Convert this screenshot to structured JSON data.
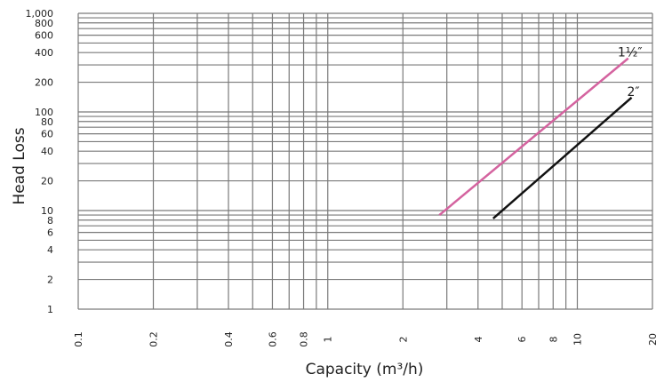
{
  "chart_data": {
    "type": "line",
    "x_scale": "log",
    "y_scale": "log",
    "xlabel": "Capacity (m³/h)",
    "ylabel": "Head Loss",
    "xlim": [
      0.1,
      20
    ],
    "ylim": [
      1,
      1000
    ],
    "grid": true,
    "x_ticks": [
      {
        "value": 0.1,
        "label": "0.1"
      },
      {
        "value": 0.2,
        "label": "0.2"
      },
      {
        "value": 0.4,
        "label": "0.4"
      },
      {
        "value": 0.6,
        "label": "0.6"
      },
      {
        "value": 0.8,
        "label": "0.8"
      },
      {
        "value": 1,
        "label": "1"
      },
      {
        "value": 2,
        "label": "2"
      },
      {
        "value": 4,
        "label": "4"
      },
      {
        "value": 6,
        "label": "6"
      },
      {
        "value": 8,
        "label": "8"
      },
      {
        "value": 10,
        "label": "10"
      },
      {
        "value": 20,
        "label": "20"
      }
    ],
    "y_ticks": [
      {
        "value": 1,
        "label": "1"
      },
      {
        "value": 2,
        "label": "2"
      },
      {
        "value": 4,
        "label": "4"
      },
      {
        "value": 6,
        "label": "6"
      },
      {
        "value": 8,
        "label": "8"
      },
      {
        "value": 10,
        "label": "10"
      },
      {
        "value": 20,
        "label": "20"
      },
      {
        "value": 40,
        "label": "40"
      },
      {
        "value": 60,
        "label": "60"
      },
      {
        "value": 80,
        "label": "80"
      },
      {
        "value": 100,
        "label": "100"
      },
      {
        "value": 200,
        "label": "200"
      },
      {
        "value": 400,
        "label": "400"
      },
      {
        "value": 600,
        "label": "600"
      },
      {
        "value": 800,
        "label": "800"
      },
      {
        "value": 1000,
        "label": "1,000"
      }
    ],
    "x_gridlines": [
      0.1,
      0.2,
      0.3,
      0.4,
      0.5,
      0.6,
      0.7,
      0.8,
      0.9,
      1,
      2,
      3,
      4,
      5,
      6,
      7,
      8,
      9,
      10,
      20
    ],
    "y_gridlines": [
      1,
      2,
      3,
      4,
      5,
      6,
      7,
      8,
      9,
      10,
      20,
      30,
      40,
      50,
      60,
      70,
      80,
      90,
      100,
      200,
      300,
      400,
      500,
      600,
      700,
      800,
      900,
      1000
    ],
    "series": [
      {
        "name": "1½″",
        "color": "#d4639f",
        "x": [
          2.8,
          16
        ],
        "y": [
          9,
          350
        ]
      },
      {
        "name": "2″",
        "color": "#111111",
        "x": [
          4.6,
          16.5
        ],
        "y": [
          8.3,
          140
        ]
      }
    ]
  }
}
